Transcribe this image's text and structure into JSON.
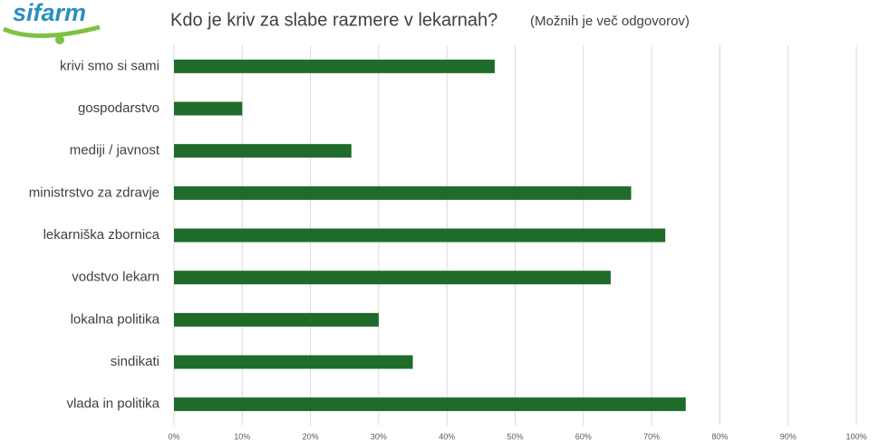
{
  "logo": "sifarm",
  "chart_data": {
    "type": "bar",
    "orientation": "horizontal",
    "title": "Kdo je kriv za slabe razmere v lekarnah?",
    "subtitle": "(Možnih je več odgovorov)",
    "categories": [
      "krivi smo si sami",
      "gospodarstvo",
      "mediji / javnost",
      "ministrstvo za zdravje",
      "lekarniška zbornica",
      "vodstvo lekarn",
      "lokalna politika",
      "sindikati",
      "vlada in politika"
    ],
    "values": [
      47,
      10,
      26,
      67,
      72,
      64,
      30,
      35,
      75
    ],
    "color": "#1e6b2a",
    "xlim": [
      0,
      100
    ],
    "xticks": [
      {
        "value": 0,
        "label": "0%"
      },
      {
        "value": 10,
        "label": "10%"
      },
      {
        "value": 20,
        "label": "20%"
      },
      {
        "value": 30,
        "label": "30%"
      },
      {
        "value": 40,
        "label": "40%"
      },
      {
        "value": 50,
        "label": "50%"
      },
      {
        "value": 60,
        "label": "60%"
      },
      {
        "value": 70,
        "label": "70%"
      },
      {
        "value": 80,
        "label": "80%"
      },
      {
        "value": 90,
        "label": "90%"
      },
      {
        "value": 100,
        "label": "100%"
      }
    ],
    "grid": true
  }
}
